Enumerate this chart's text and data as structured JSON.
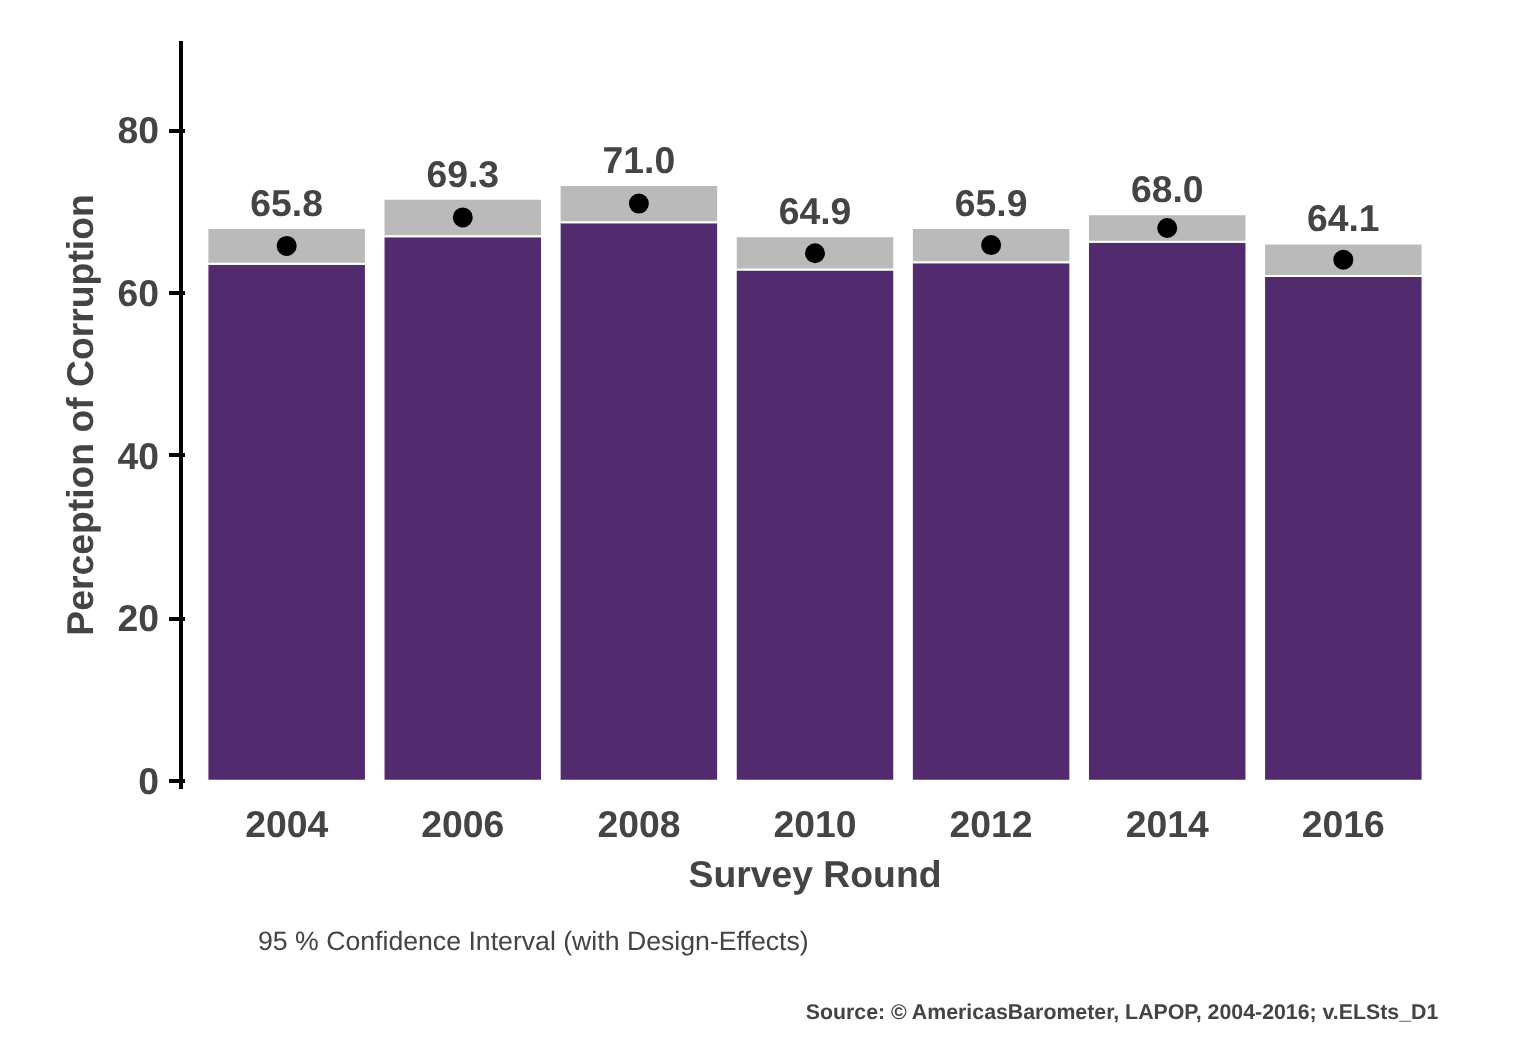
{
  "chart_data": {
    "type": "bar",
    "stacked": true,
    "xlabel": "Survey Round",
    "ylabel": "Perception of Corruption",
    "categories": [
      "2004",
      "2006",
      "2008",
      "2010",
      "2012",
      "2014",
      "2016"
    ],
    "series": [
      {
        "color": "#522a6e",
        "values": [
          63.6,
          67.0,
          68.7,
          62.9,
          63.8,
          66.3,
          62.1
        ]
      },
      {
        "name": "95 % Confidence Interval (with Design-Effects)",
        "color": "#bababa",
        "values": [
          4.4,
          4.6,
          4.6,
          4.1,
          4.2,
          3.4,
          4.0
        ]
      },
      {
        "type": "scatter",
        "color": "#000000",
        "values": [
          65.8,
          69.3,
          71.0,
          64.9,
          65.9,
          68.0,
          64.1
        ],
        "value_labels": [
          "65.8",
          "69.3",
          "71.0",
          "64.9",
          "65.9",
          "68.0",
          "64.1"
        ]
      }
    ],
    "ylim": [
      -1,
      91
    ],
    "yticks": [
      0,
      20,
      40,
      60,
      80
    ],
    "grid": false,
    "legend": "bottom left",
    "marker": "circle",
    "annotations": [
      "Source: © AmericasBarometer, LAPOP, 2004-2016; v.ELSts_D1"
    ]
  }
}
